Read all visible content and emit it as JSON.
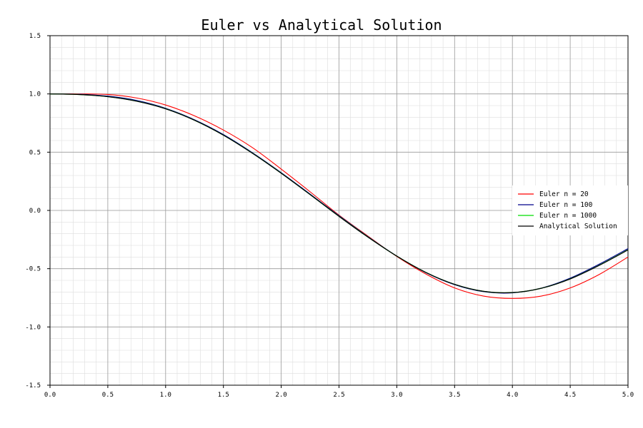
{
  "chart_data": {
    "type": "line",
    "title": "Euler vs Analytical Solution",
    "xlabel": "",
    "ylabel": "",
    "xlim": [
      0.0,
      5.0
    ],
    "ylim": [
      -1.5,
      1.5
    ],
    "x_ticks": [
      "0.0",
      "0.5",
      "1.0",
      "1.5",
      "2.0",
      "2.5",
      "3.0",
      "3.5",
      "4.0",
      "4.5",
      "5.0"
    ],
    "y_ticks": [
      "1.5",
      "1.0",
      "0.5",
      "0.0",
      "-0.5",
      "-1.0",
      "-1.5"
    ],
    "grid": true,
    "minor_grid": true,
    "legend_position": "right",
    "series": [
      {
        "name": "Euler n = 20",
        "color": "#ff0000",
        "x": [
          0.0,
          0.25,
          0.5,
          0.75,
          1.0,
          1.25,
          1.5,
          1.75,
          2.0,
          2.25,
          2.5,
          2.75,
          3.0,
          3.25,
          3.5,
          3.75,
          4.0,
          4.25,
          4.5,
          4.75,
          5.0
        ],
        "y": [
          1.0,
          1.0,
          0.995,
          0.965,
          0.905,
          0.812,
          0.69,
          0.54,
          0.355,
          0.16,
          -0.04,
          -0.22,
          -0.395,
          -0.545,
          -0.665,
          -0.735,
          -0.755,
          -0.735,
          -0.665,
          -0.55,
          -0.4
        ]
      },
      {
        "name": "Euler n = 100",
        "color": "#00008b",
        "x": [
          0.0,
          0.25,
          0.5,
          0.75,
          1.0,
          1.25,
          1.5,
          1.75,
          2.0,
          2.25,
          2.5,
          2.75,
          3.0,
          3.25,
          3.5,
          3.75,
          4.0,
          4.25,
          4.5,
          4.75,
          5.0
        ],
        "y": [
          1.0,
          0.997,
          0.981,
          0.944,
          0.877,
          0.778,
          0.651,
          0.496,
          0.324,
          0.14,
          -0.045,
          -0.225,
          -0.392,
          -0.533,
          -0.637,
          -0.697,
          -0.707,
          -0.667,
          -0.581,
          -0.462,
          -0.328
        ]
      },
      {
        "name": "Euler n = 1000",
        "color": "#00dd00",
        "x": [
          0.0,
          0.25,
          0.5,
          0.75,
          1.0,
          1.25,
          1.5,
          1.75,
          2.0,
          2.25,
          2.5,
          2.75,
          3.0,
          3.25,
          3.5,
          3.75,
          4.0,
          4.25,
          4.5,
          4.75,
          5.0
        ],
        "y": [
          1.0,
          0.995,
          0.976,
          0.938,
          0.873,
          0.774,
          0.646,
          0.492,
          0.32,
          0.136,
          -0.05,
          -0.228,
          -0.392,
          -0.531,
          -0.634,
          -0.694,
          -0.705,
          -0.668,
          -0.587,
          -0.471,
          -0.338
        ]
      },
      {
        "name": "Analytical Solution",
        "color": "#000000",
        "x": [
          0.0,
          0.25,
          0.5,
          0.75,
          1.0,
          1.25,
          1.5,
          1.75,
          2.0,
          2.25,
          2.5,
          2.75,
          3.0,
          3.25,
          3.5,
          3.75,
          4.0,
          4.25,
          4.5,
          4.75,
          5.0
        ],
        "y": [
          1.0,
          0.995,
          0.976,
          0.937,
          0.872,
          0.774,
          0.646,
          0.491,
          0.319,
          0.136,
          -0.051,
          -0.229,
          -0.392,
          -0.531,
          -0.634,
          -0.694,
          -0.705,
          -0.668,
          -0.588,
          -0.472,
          -0.339
        ]
      }
    ]
  }
}
